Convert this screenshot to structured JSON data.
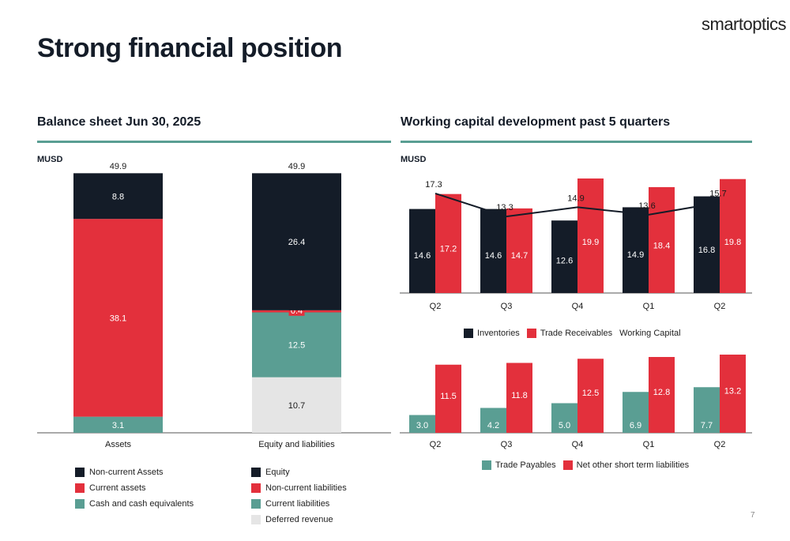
{
  "brand": "smartoptics",
  "page_title": "Strong financial position",
  "page_number": "7",
  "colors": {
    "navy": "#141c28",
    "red": "#e3303c",
    "teal": "#5a9e93",
    "gray": "#e5e5e5",
    "white_label": "#ffffff",
    "dark_label": "#1a1a1a"
  },
  "left": {
    "section_title": "Balance sheet Jun 30, 2025",
    "unit": "MUSD",
    "legend_assets": [
      {
        "label": "Non-current Assets",
        "color": "#141c28"
      },
      {
        "label": "Current assets",
        "color": "#e3303c"
      },
      {
        "label": "Cash and cash equivalents",
        "color": "#5a9e93"
      }
    ],
    "legend_liab": [
      {
        "label": "Equity",
        "color": "#141c28"
      },
      {
        "label": "Non-current liabilities",
        "color": "#e3303c"
      },
      {
        "label": "Current liabilities",
        "color": "#5a9e93"
      },
      {
        "label": "Deferred revenue",
        "color": "#e5e5e5"
      }
    ]
  },
  "right": {
    "section_title": "Working capital development past 5 quarters",
    "unit": "MUSD",
    "legend_top": [
      {
        "label": "Inventories",
        "color": "#141c28",
        "kind": "box"
      },
      {
        "label": "Trade Receivables",
        "color": "#e3303c",
        "kind": "box"
      },
      {
        "label": "Working Capital",
        "color": "#141c28",
        "kind": "line"
      }
    ],
    "legend_bottom": [
      {
        "label": "Trade Payables",
        "color": "#5a9e93"
      },
      {
        "label": "Net other short term liabilities",
        "color": "#e3303c"
      }
    ]
  },
  "chart_data": [
    {
      "type": "bar",
      "stacked": true,
      "categories": [
        "Assets",
        "Equity and liabilities"
      ],
      "totals": [
        "49.9",
        "49.9"
      ],
      "ylim": [
        0,
        49.9
      ],
      "stacks": [
        [
          {
            "name": "Cash and cash equivalents",
            "value": 3.1,
            "color": "#5a9e93",
            "label_color": "#ffffff"
          },
          {
            "name": "Current assets",
            "value": 38.1,
            "color": "#e3303c",
            "label_color": "#ffffff"
          },
          {
            "name": "Non-current Assets",
            "value": 8.8,
            "color": "#141c28",
            "label_color": "#ffffff"
          }
        ],
        [
          {
            "name": "Deferred revenue",
            "value": 10.7,
            "color": "#e5e5e5",
            "label_color": "#1a1a1a"
          },
          {
            "name": "Current liabilities",
            "value": 12.5,
            "color": "#5a9e93",
            "label_color": "#ffffff"
          },
          {
            "name": "Non-current liabilities",
            "value": 0.4,
            "color": "#e3303c",
            "label_color": "#ffffff"
          },
          {
            "name": "Equity",
            "value": 26.4,
            "color": "#141c28",
            "label_color": "#ffffff"
          }
        ]
      ]
    },
    {
      "type": "bar",
      "categories": [
        "Q2",
        "Q3",
        "Q4",
        "Q1",
        "Q2"
      ],
      "ylim": [
        0,
        19.9
      ],
      "series": [
        {
          "name": "Inventories",
          "values": [
            14.6,
            14.6,
            12.6,
            14.9,
            16.8
          ],
          "color": "#141c28"
        },
        {
          "name": "Trade Receivables",
          "values": [
            17.2,
            14.7,
            19.9,
            18.4,
            19.8
          ],
          "color": "#e3303c"
        }
      ],
      "line_series": {
        "name": "Working Capital",
        "values": [
          17.3,
          13.3,
          14.9,
          13.6,
          15.7
        ],
        "color": "#141c28"
      }
    },
    {
      "type": "bar",
      "categories": [
        "Q2",
        "Q3",
        "Q4",
        "Q1",
        "Q2"
      ],
      "ylim": [
        0,
        13.2
      ],
      "series": [
        {
          "name": "Trade Payables",
          "values": [
            3.0,
            4.2,
            5.0,
            6.9,
            7.7
          ],
          "color": "#5a9e93"
        },
        {
          "name": "Net other short term liabilities",
          "values": [
            11.5,
            11.8,
            12.5,
            12.8,
            13.2
          ],
          "color": "#e3303c"
        }
      ]
    }
  ]
}
